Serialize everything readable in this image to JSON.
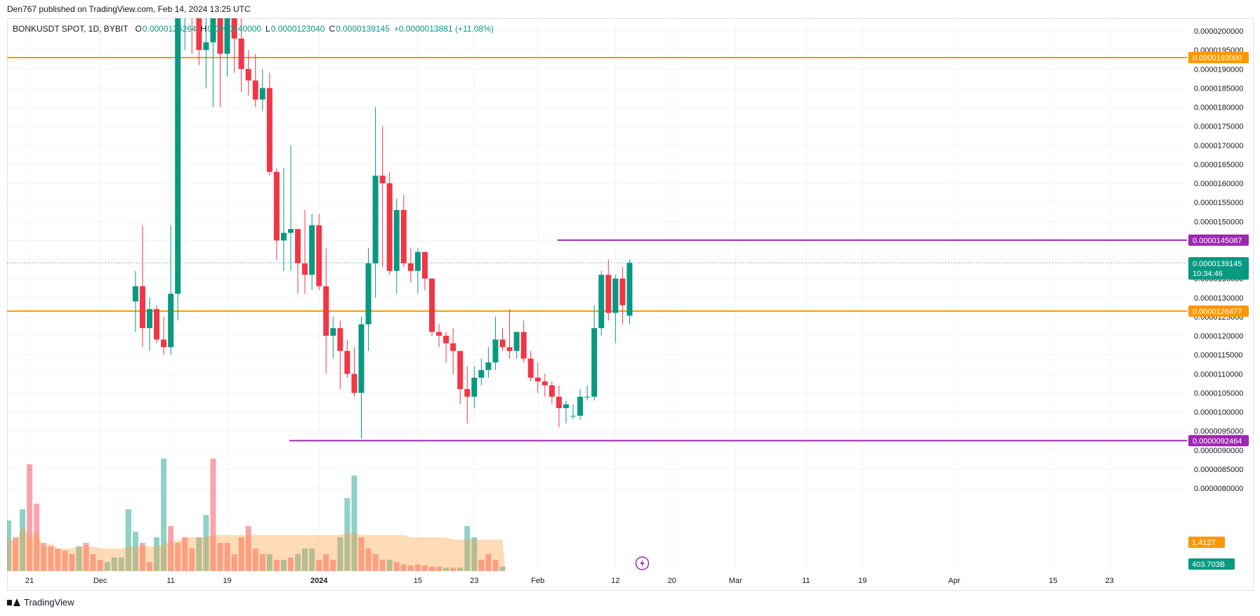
{
  "header": {
    "publisher": "Den767 published on TradingView.com, Feb 14, 2024 13:25 UTC"
  },
  "legend": {
    "symbol": "BONKUSDT SPOT, 1D, BYBIT",
    "o_key": "O",
    "o_val": "0.0000125264",
    "h_key": "H",
    "h_val": "0.0000140000",
    "l_key": "L",
    "l_val": "0.0000123040",
    "c_key": "C",
    "c_val": "0.0000139145",
    "change": "+0.0000013881 (+11.08%)"
  },
  "footer": {
    "brand": "TradingView"
  },
  "colors": {
    "up": "#089981",
    "down": "#f23645",
    "orange": "#ff9800",
    "purple": "#9c27b0",
    "volume_ma": "#ffcc99",
    "grid": "#f0f3fa"
  },
  "chart_data": {
    "type": "candlestick",
    "y_ticks": [
      "0.0000200000",
      "0.0000195000",
      "0.0000190000",
      "0.0000185000",
      "0.0000180000",
      "0.0000175000",
      "0.0000170000",
      "0.0000165000",
      "0.0000160000",
      "0.0000155000",
      "0.0000150000",
      "0.0000145000",
      "0.0000140000",
      "0.0000135000",
      "0.0000130000",
      "0.0000125000",
      "0.0000120000",
      "0.0000115000",
      "0.0000110000",
      "0.0000105000",
      "0.0000100000",
      "0.0000095000",
      "0.0000090000",
      "0.0000085000",
      "0.0000080000"
    ],
    "ylim": [
      8e-06,
      2.02e-05
    ],
    "x_ticks": [
      {
        "label": "21",
        "bar": 3,
        "bold": false
      },
      {
        "label": "Dec",
        "bar": 13,
        "bold": false
      },
      {
        "label": "11",
        "bar": 23,
        "bold": false
      },
      {
        "label": "19",
        "bar": 31,
        "bold": false
      },
      {
        "label": "2024",
        "bar": 44,
        "bold": true
      },
      {
        "label": "15",
        "bar": 58,
        "bold": false
      },
      {
        "label": "23",
        "bar": 66,
        "bold": false
      },
      {
        "label": "Feb",
        "bar": 75,
        "bold": false
      },
      {
        "label": "12",
        "bar": 86,
        "bold": false
      },
      {
        "label": "20",
        "bar": 94,
        "bold": false
      },
      {
        "label": "Mar",
        "bar": 103,
        "bold": false
      },
      {
        "label": "11",
        "bar": 113,
        "bold": false
      },
      {
        "label": "19",
        "bar": 121,
        "bold": false
      },
      {
        "label": "Apr",
        "bar": 134,
        "bold": false
      },
      {
        "label": "15",
        "bar": 148,
        "bold": false
      },
      {
        "label": "23",
        "bar": 156,
        "bold": false
      }
    ],
    "candles": [
      [
        1.29e-05,
        1.37e-05,
        1.21e-05,
        1.33e-05
      ],
      [
        1.33e-05,
        1.49e-05,
        1.17e-05,
        1.22e-05
      ],
      [
        1.22e-05,
        1.3e-05,
        1.16e-05,
        1.27e-05
      ],
      [
        1.27e-05,
        1.28e-05,
        1.18e-05,
        1.19e-05
      ],
      [
        1.19e-05,
        1.25e-05,
        1.15e-05,
        1.17e-05
      ],
      [
        1.17e-05,
        1.49e-05,
        1.15e-05,
        1.31e-05
      ],
      [
        1.31e-05,
        2.22e-05,
        1.24e-05,
        2.1e-05
      ],
      [
        2.1e-05,
        2.32e-05,
        1.95e-05,
        2.25e-05
      ],
      [
        2.25e-05,
        2.32e-05,
        1.94e-05,
        2.05e-05
      ],
      [
        2.05e-05,
        2.15e-05,
        1.91e-05,
        1.95e-05
      ],
      [
        1.95e-05,
        2.1e-05,
        1.85e-05,
        1.97e-05
      ],
      [
        1.97e-05,
        2.4e-05,
        1.8e-05,
        2.2e-05
      ],
      [
        2.2e-05,
        2.25e-05,
        1.8e-05,
        1.94e-05
      ],
      [
        1.94e-05,
        2.28e-05,
        1.88e-05,
        2.13e-05
      ],
      [
        2.13e-05,
        2.24e-05,
        1.89e-05,
        1.98e-05
      ],
      [
        1.98e-05,
        2.05e-05,
        1.84e-05,
        1.9e-05
      ],
      [
        1.9e-05,
        1.95e-05,
        1.83e-05,
        1.87e-05
      ],
      [
        1.87e-05,
        1.94e-05,
        1.8e-05,
        1.82e-05
      ],
      [
        1.82e-05,
        1.9e-05,
        1.79e-05,
        1.85e-05
      ],
      [
        1.85e-05,
        1.89e-05,
        1.62e-05,
        1.63e-05
      ],
      [
        1.63e-05,
        1.64e-05,
        1.4e-05,
        1.45e-05
      ],
      [
        1.45e-05,
        1.64e-05,
        1.37e-05,
        1.47e-05
      ],
      [
        1.47e-05,
        1.7e-05,
        1.37e-05,
        1.48e-05
      ],
      [
        1.48e-05,
        1.48e-05,
        1.31e-05,
        1.39e-05
      ],
      [
        1.39e-05,
        1.53e-05,
        1.31e-05,
        1.36e-05
      ],
      [
        1.36e-05,
        1.52e-05,
        1.32e-05,
        1.49e-05
      ],
      [
        1.49e-05,
        1.52e-05,
        1.32e-05,
        1.33e-05
      ],
      [
        1.33e-05,
        1.43e-05,
        1.1e-05,
        1.2e-05
      ],
      [
        1.2e-05,
        1.25e-05,
        1.14e-05,
        1.22e-05
      ],
      [
        1.22e-05,
        1.24e-05,
        1.06e-05,
        1.16e-05
      ],
      [
        1.16e-05,
        1.19e-05,
        1.09e-05,
        1.1e-05
      ],
      [
        1.1e-05,
        1.17e-05,
        1.04e-05,
        1.05e-05
      ],
      [
        1.05e-05,
        1.25e-05,
        9.3e-06,
        1.23e-05
      ],
      [
        1.23e-05,
        1.43e-05,
        1.16e-05,
        1.39e-05
      ],
      [
        1.39e-05,
        1.8e-05,
        1.3e-05,
        1.62e-05
      ],
      [
        1.62e-05,
        1.75e-05,
        1.38e-05,
        1.6e-05
      ],
      [
        1.6e-05,
        1.63e-05,
        1.36e-05,
        1.37e-05
      ],
      [
        1.37e-05,
        1.56e-05,
        1.31e-05,
        1.53e-05
      ],
      [
        1.53e-05,
        1.57e-05,
        1.38e-05,
        1.39e-05
      ],
      [
        1.39e-05,
        1.43e-05,
        1.34e-05,
        1.37e-05
      ],
      [
        1.37e-05,
        1.43e-05,
        1.31e-05,
        1.42e-05
      ],
      [
        1.42e-05,
        1.42e-05,
        1.32e-05,
        1.35e-05
      ],
      [
        1.35e-05,
        1.35e-05,
        1.2e-05,
        1.21e-05
      ],
      [
        1.21e-05,
        1.23e-05,
        1.17e-05,
        1.2e-05
      ],
      [
        1.2e-05,
        1.21e-05,
        1.13e-05,
        1.18e-05
      ],
      [
        1.18e-05,
        1.22e-05,
        1.1e-05,
        1.16e-05
      ],
      [
        1.16e-05,
        1.16e-05,
        1.02e-05,
        1.06e-05
      ],
      [
        1.06e-05,
        1.12e-05,
        9.7e-06,
        1.04e-05
      ],
      [
        1.04e-05,
        1.12e-05,
        1.01e-05,
        1.09e-05
      ],
      [
        1.09e-05,
        1.14e-05,
        1.07e-05,
        1.11e-05
      ],
      [
        1.11e-05,
        1.17e-05,
        1.09e-05,
        1.13e-05
      ],
      [
        1.13e-05,
        1.25e-05,
        1.11e-05,
        1.19e-05
      ],
      [
        1.19e-05,
        1.22e-05,
        1.16e-05,
        1.17e-05
      ],
      [
        1.17e-05,
        1.27e-05,
        1.14e-05,
        1.16e-05
      ],
      [
        1.16e-05,
        1.21e-05,
        1.14e-05,
        1.21e-05
      ],
      [
        1.21e-05,
        1.24e-05,
        1.13e-05,
        1.14e-05
      ],
      [
        1.14e-05,
        1.16e-05,
        1.08e-05,
        1.09e-05
      ],
      [
        1.09e-05,
        1.13e-05,
        1.05e-05,
        1.08e-05
      ],
      [
        1.08e-05,
        1.1e-05,
        1.04e-05,
        1.07e-05
      ],
      [
        1.07e-05,
        1.08e-05,
        1.02e-05,
        1.04e-05
      ],
      [
        1.04e-05,
        1.07e-05,
        9.6e-06,
        1.01e-05
      ],
      [
        1.01e-05,
        1.03e-05,
        9.7e-06,
        1.02e-05
      ],
      [
        9.9e-06,
        1.02e-05,
        9.8e-06,
        9.9e-06
      ],
      [
        9.9e-06,
        1.06e-05,
        9.8e-06,
        1.04e-05
      ],
      [
        1.04e-05,
        1.07e-05,
        1.03e-05,
        1.04e-05
      ],
      [
        1.04e-05,
        1.28e-05,
        1.03e-05,
        1.22e-05
      ],
      [
        1.22e-05,
        1.37e-05,
        1.2e-05,
        1.36e-05
      ],
      [
        1.36e-05,
        1.4e-05,
        1.24e-05,
        1.26e-05
      ],
      [
        1.26e-05,
        1.36e-05,
        1.18e-05,
        1.35e-05
      ],
      [
        1.35e-05,
        1.38e-05,
        1.23e-05,
        1.28e-05
      ],
      [
        1.25264e-05,
        1.4e-05,
        1.2304e-05,
        1.39145e-05
      ]
    ],
    "bar_dates_note": "",
    "volumes": [
      [
        0.45,
        0.3,
        0
      ],
      [
        0.3,
        0.25,
        1
      ],
      [
        0.55,
        0.4,
        0
      ],
      [
        0.95,
        0.3,
        1
      ],
      [
        0.6,
        0.35,
        1
      ],
      [
        0.25,
        0.2,
        1
      ],
      [
        0.22,
        0.25,
        1
      ],
      [
        0.2,
        0.2,
        1
      ],
      [
        0.18,
        0.2,
        1
      ],
      [
        0.15,
        0.2,
        1
      ],
      [
        0.22,
        0.22,
        0
      ],
      [
        0.25,
        0.22,
        1
      ],
      [
        0.15,
        0.22,
        1
      ],
      [
        0.1,
        0.2,
        1
      ],
      [
        0.08,
        0.2,
        0
      ],
      [
        0.12,
        0.2,
        0
      ],
      [
        0.12,
        0.2,
        0
      ],
      [
        0.55,
        0.22,
        0
      ],
      [
        0.35,
        0.22,
        0
      ],
      [
        0.25,
        0.22,
        1
      ],
      [
        0.08,
        0.22,
        1
      ],
      [
        0.3,
        0.22,
        0
      ],
      [
        1.0,
        0.24,
        0
      ],
      [
        0.4,
        0.26,
        1
      ],
      [
        0.25,
        0.27,
        1
      ],
      [
        0.3,
        0.3,
        1
      ],
      [
        0.2,
        0.3,
        1
      ],
      [
        0.3,
        0.3,
        0
      ],
      [
        0.5,
        0.3,
        0
      ],
      [
        1.0,
        0.32,
        1
      ],
      [
        0.25,
        0.32,
        1
      ],
      [
        0.25,
        0.32,
        1
      ],
      [
        0.15,
        0.32,
        1
      ],
      [
        0.3,
        0.32,
        1
      ],
      [
        0.4,
        0.32,
        1
      ],
      [
        0.2,
        0.32,
        1
      ],
      [
        0.15,
        0.32,
        1
      ],
      [
        0.15,
        0.32,
        0
      ],
      [
        0.1,
        0.32,
        1
      ],
      [
        0.1,
        0.32,
        0
      ],
      [
        0.12,
        0.32,
        1
      ],
      [
        0.15,
        0.32,
        0
      ],
      [
        0.2,
        0.32,
        0
      ],
      [
        0.2,
        0.32,
        0
      ],
      [
        0.1,
        0.32,
        1
      ],
      [
        0.15,
        0.32,
        1
      ],
      [
        0.1,
        0.32,
        1
      ],
      [
        0.3,
        0.32,
        0
      ],
      [
        0.65,
        0.34,
        0
      ],
      [
        0.85,
        0.34,
        0
      ],
      [
        0.3,
        0.32,
        1
      ],
      [
        0.2,
        0.32,
        1
      ],
      [
        0.15,
        0.32,
        1
      ],
      [
        0.1,
        0.32,
        1
      ],
      [
        0.1,
        0.32,
        0
      ],
      [
        0.08,
        0.32,
        1
      ],
      [
        0.06,
        0.32,
        1
      ],
      [
        0.05,
        0.3,
        1
      ],
      [
        0.06,
        0.3,
        1
      ],
      [
        0.05,
        0.3,
        1
      ],
      [
        0.04,
        0.3,
        1
      ],
      [
        0.04,
        0.3,
        1
      ],
      [
        0.03,
        0.3,
        0
      ],
      [
        0.03,
        0.28,
        1
      ],
      [
        0.03,
        0.28,
        0
      ],
      [
        0.4,
        0.28,
        0
      ],
      [
        0.3,
        0.28,
        0
      ],
      [
        0.1,
        0.28,
        1
      ],
      [
        0.15,
        0.28,
        1
      ],
      [
        0.1,
        0.28,
        1
      ],
      [
        0.04,
        0.28,
        0
      ]
    ],
    "levels": [
      {
        "value": 1.93e-05,
        "label": "0.0000193000",
        "color": "#ff9800",
        "start_bar": -100
      },
      {
        "value": 1.26477e-05,
        "label": "0.0000126477",
        "color": "#ff9800",
        "start_bar": -100
      },
      {
        "value": 1.45087e-05,
        "label": "0.0000145087",
        "color": "#9c27b0",
        "start_bar": 60
      },
      {
        "value": 9.2464e-06,
        "label": "0.0000092464",
        "color": "#9c27b0",
        "start_bar": 22
      }
    ],
    "last_price": {
      "label": "0.0000139145",
      "countdown": "10:34:46",
      "value": 1.39145e-05
    },
    "volume_labels": [
      {
        "text": "1.412T",
        "color": "#ff9800"
      },
      {
        "text": "403.703B",
        "color": "#089981"
      }
    ]
  }
}
